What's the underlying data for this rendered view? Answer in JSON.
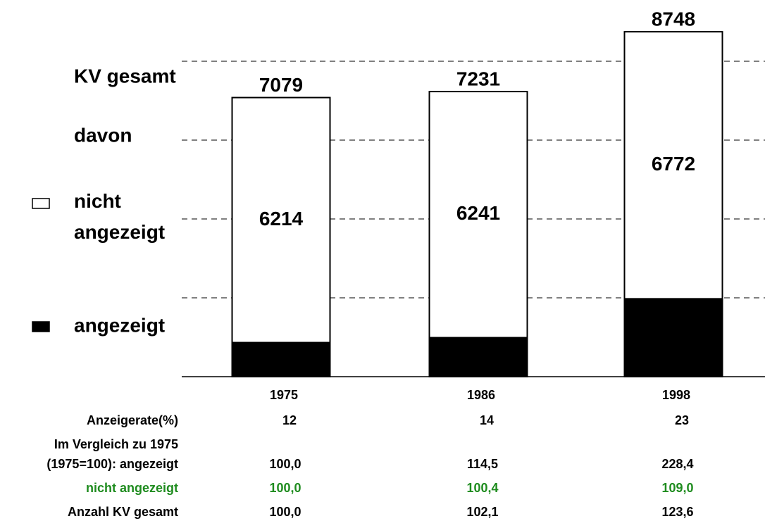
{
  "chart_data": {
    "type": "bar",
    "stacked": true,
    "categories": [
      "1975",
      "1986",
      "1998"
    ],
    "series": [
      {
        "name": "angezeigt",
        "color": "#000000",
        "values": [
          865,
          990,
          1976
        ],
        "show_value_labels": false
      },
      {
        "name": "nicht angezeigt",
        "color": "#ffffff",
        "values": [
          6214,
          6241,
          6772
        ],
        "show_value_labels": true
      }
    ],
    "totals": [
      7079,
      7231,
      8748
    ],
    "total_label": "KV gesamt",
    "legend_heading": "davon",
    "ylim": [
      0,
      9000
    ],
    "yticks": [
      2000,
      4000,
      6000,
      8000
    ],
    "show_tick_labels": false,
    "grid": true
  },
  "table": {
    "caption": "Im Vergleich zu 1975",
    "rows": [
      {
        "label": "Anzeigerate(%)",
        "values": [
          "12",
          "14",
          "23"
        ]
      },
      {
        "label": "(1975=100): angezeigt",
        "values": [
          "100,0",
          "114,5",
          "228,4"
        ]
      },
      {
        "label": "nicht angezeigt",
        "values": [
          "100,0",
          "100,4",
          "109,0"
        ],
        "color": "#1f8c1f"
      },
      {
        "label": "Anzahl KV gesamt",
        "values": [
          "100,0",
          "102,1",
          "123,6"
        ]
      }
    ]
  }
}
